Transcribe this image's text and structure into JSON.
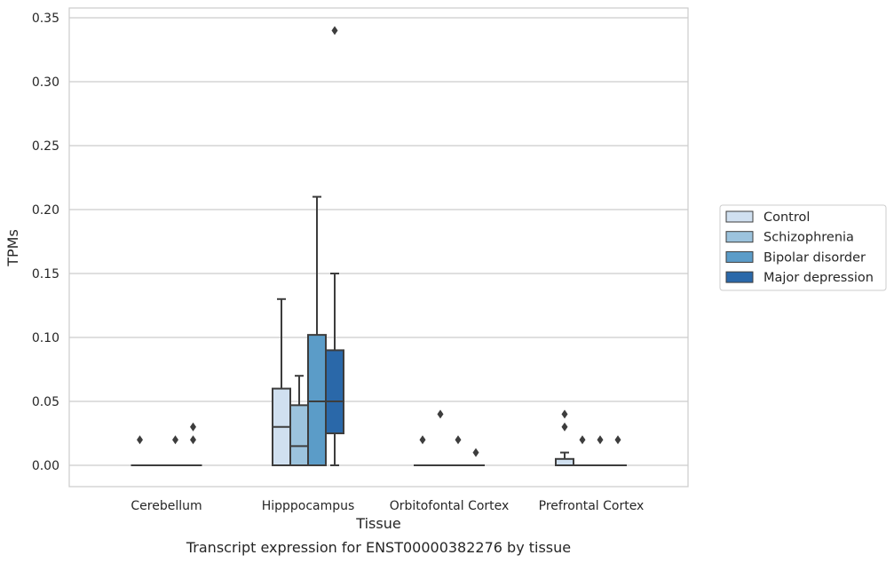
{
  "chart_data": {
    "type": "boxplot",
    "caption": "Transcript expression for ENST00000382276 by tissue",
    "xlabel": "Tissue",
    "ylabel": "TPMs",
    "ylim": [
      -0.017,
      0.357
    ],
    "yticks": [
      "0.00",
      "0.05",
      "0.10",
      "0.15",
      "0.20",
      "0.25",
      "0.30",
      "0.35"
    ],
    "ytick_values": [
      0,
      0.05,
      0.1,
      0.15,
      0.2,
      0.25,
      0.3,
      0.35
    ],
    "grid": "horizontal",
    "legend_position": "right",
    "categories": [
      "Cerebellum",
      "Hipppocampus",
      "Orbitofontal Cortex",
      "Prefrontal Cortex"
    ],
    "series": [
      {
        "name": "Control",
        "color": "#d0e0f0",
        "boxes": [
          {
            "q1": 0,
            "median": 0,
            "q3": 0,
            "whisker_low": 0,
            "whisker_high": 0,
            "outliers": [
              0.02
            ]
          },
          {
            "q1": 0,
            "median": 0.03,
            "q3": 0.06,
            "whisker_low": 0,
            "whisker_high": 0.13,
            "outliers": []
          },
          {
            "q1": 0,
            "median": 0,
            "q3": 0,
            "whisker_low": 0,
            "whisker_high": 0,
            "outliers": [
              0.02
            ]
          },
          {
            "q1": 0,
            "median": 0,
            "q3": 0.005,
            "whisker_low": 0,
            "whisker_high": 0.01,
            "outliers": [
              0.03,
              0.04
            ]
          }
        ]
      },
      {
        "name": "Schizophrenia",
        "color": "#9cc3dd",
        "boxes": [
          {
            "q1": 0,
            "median": 0,
            "q3": 0,
            "whisker_low": 0,
            "whisker_high": 0,
            "outliers": []
          },
          {
            "q1": 0,
            "median": 0.015,
            "q3": 0.047,
            "whisker_low": 0,
            "whisker_high": 0.07,
            "outliers": []
          },
          {
            "q1": 0,
            "median": 0,
            "q3": 0,
            "whisker_low": 0,
            "whisker_high": 0,
            "outliers": [
              0.04
            ]
          },
          {
            "q1": 0,
            "median": 0,
            "q3": 0,
            "whisker_low": 0,
            "whisker_high": 0,
            "outliers": [
              0.02
            ]
          }
        ]
      },
      {
        "name": "Bipolar disorder",
        "color": "#5b9cc8",
        "boxes": [
          {
            "q1": 0,
            "median": 0,
            "q3": 0,
            "whisker_low": 0,
            "whisker_high": 0,
            "outliers": [
              0.02
            ]
          },
          {
            "q1": 0,
            "median": 0.05,
            "q3": 0.102,
            "whisker_low": 0,
            "whisker_high": 0.21,
            "outliers": []
          },
          {
            "q1": 0,
            "median": 0,
            "q3": 0,
            "whisker_low": 0,
            "whisker_high": 0,
            "outliers": [
              0.02
            ]
          },
          {
            "q1": 0,
            "median": 0,
            "q3": 0,
            "whisker_low": 0,
            "whisker_high": 0,
            "outliers": [
              0.02
            ]
          }
        ]
      },
      {
        "name": "Major depression",
        "color": "#2a68a9",
        "boxes": [
          {
            "q1": 0,
            "median": 0,
            "q3": 0,
            "whisker_low": 0,
            "whisker_high": 0,
            "outliers": [
              0.02,
              0.03
            ]
          },
          {
            "q1": 0.025,
            "median": 0.05,
            "q3": 0.09,
            "whisker_low": 0,
            "whisker_high": 0.15,
            "outliers": [
              0.34
            ]
          },
          {
            "q1": 0,
            "median": 0,
            "q3": 0,
            "whisker_low": 0,
            "whisker_high": 0,
            "outliers": [
              0.01
            ]
          },
          {
            "q1": 0,
            "median": 0,
            "q3": 0,
            "whisker_low": 0,
            "whisker_high": 0,
            "outliers": [
              0.02
            ]
          }
        ]
      }
    ]
  }
}
